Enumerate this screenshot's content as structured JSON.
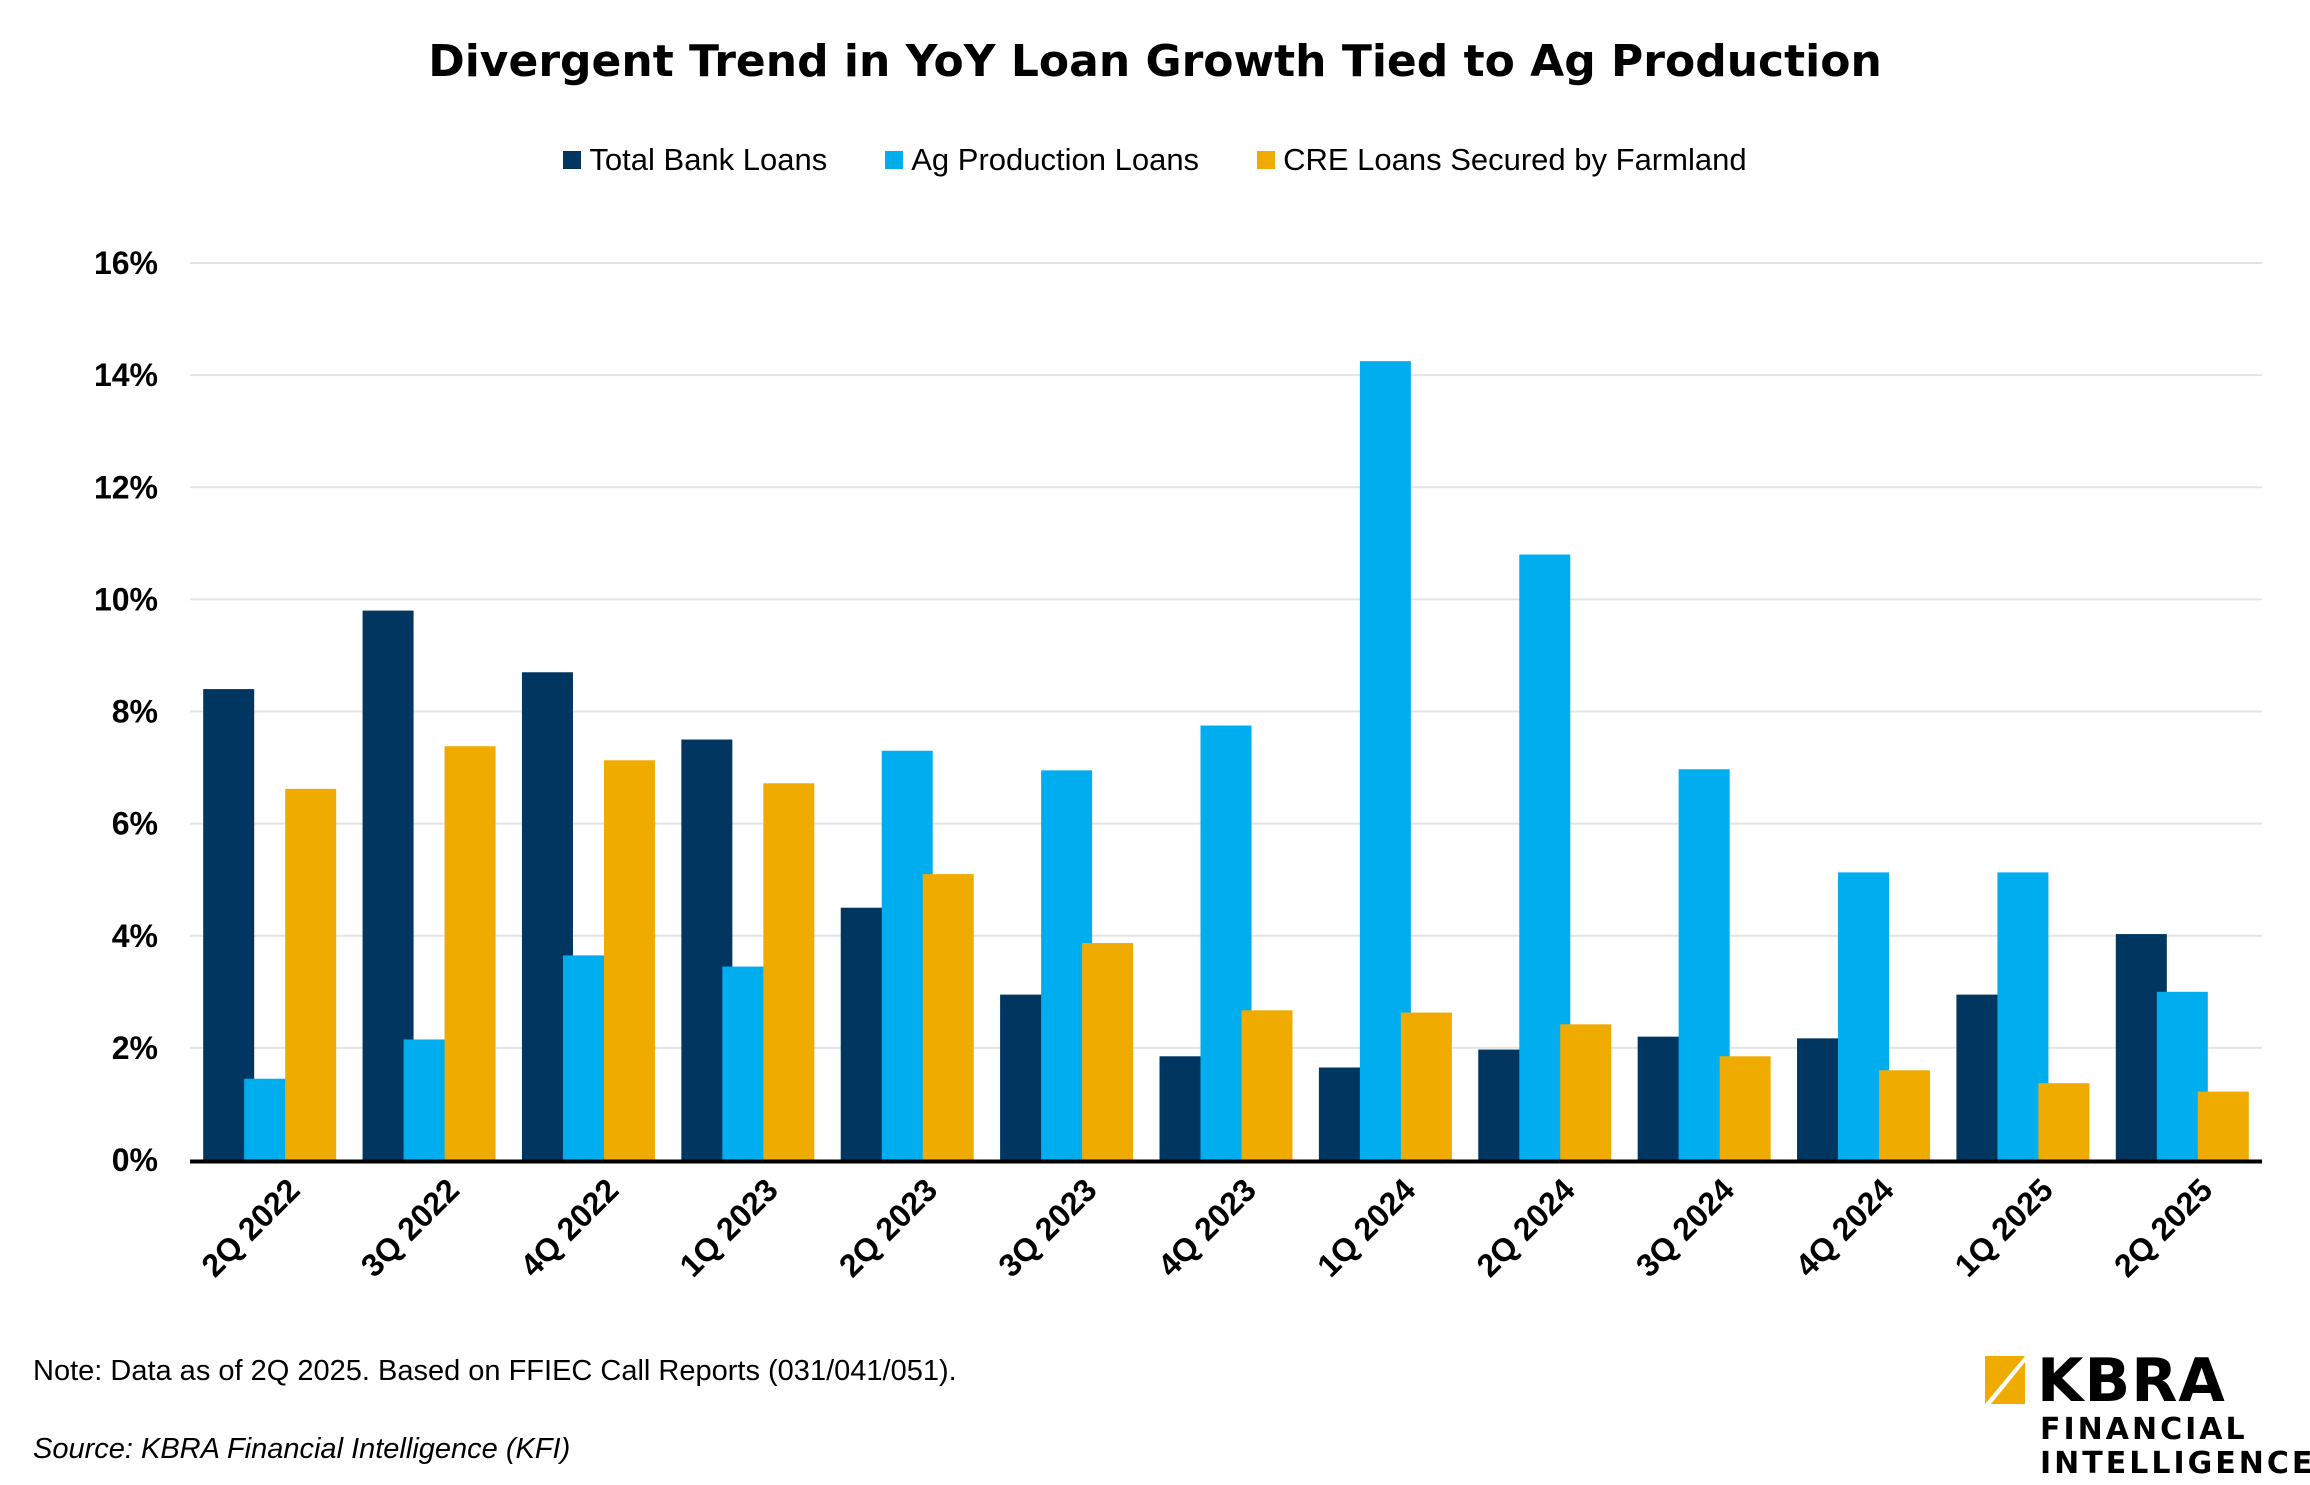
{
  "chart_data": {
    "type": "bar",
    "title": "Divergent Trend in YoY Loan Growth Tied to Ag Production",
    "categories": [
      "2Q 2022",
      "3Q 2022",
      "4Q 2022",
      "1Q 2023",
      "2Q 2023",
      "3Q 2023",
      "4Q 2023",
      "1Q 2024",
      "2Q 2024",
      "3Q 2024",
      "4Q 2024",
      "1Q 2025",
      "2Q 2025"
    ],
    "series": [
      {
        "name": "Total Bank Loans",
        "color": "#003660",
        "values": [
          8.4,
          9.8,
          8.7,
          7.5,
          4.5,
          2.95,
          1.85,
          1.65,
          1.97,
          2.2,
          2.17,
          2.95,
          4.03
        ]
      },
      {
        "name": "Ag Production Loans",
        "color": "#00AEEF",
        "values": [
          1.45,
          2.15,
          3.65,
          3.45,
          7.3,
          6.95,
          7.75,
          14.25,
          10.8,
          6.97,
          5.13,
          5.13,
          3.0
        ]
      },
      {
        "name": "CRE Loans Secured by Farmland",
        "color": "#F0AB00",
        "values": [
          6.62,
          7.38,
          7.13,
          6.72,
          5.1,
          3.87,
          2.67,
          2.63,
          2.42,
          1.85,
          1.6,
          1.37,
          1.22
        ]
      }
    ],
    "ylim": [
      0,
      16
    ],
    "yticks": [
      0,
      2,
      4,
      6,
      8,
      10,
      12,
      14,
      16
    ],
    "yticklabels": [
      "0%",
      "2%",
      "4%",
      "6%",
      "8%",
      "10%",
      "12%",
      "14%",
      "16%"
    ],
    "xlabel": "",
    "ylabel": "",
    "grid": true,
    "legend": "top-center"
  },
  "note": "Note: Data as of 2Q 2025. Based on FFIEC Call Reports (031/041/051).",
  "source": "Source: KBRA Financial Intelligence (KFI)",
  "logo": {
    "name": "KBRA",
    "line1": "FINANCIAL",
    "line2": "INTELLIGENCE",
    "accent_color": "#F0AB00"
  }
}
